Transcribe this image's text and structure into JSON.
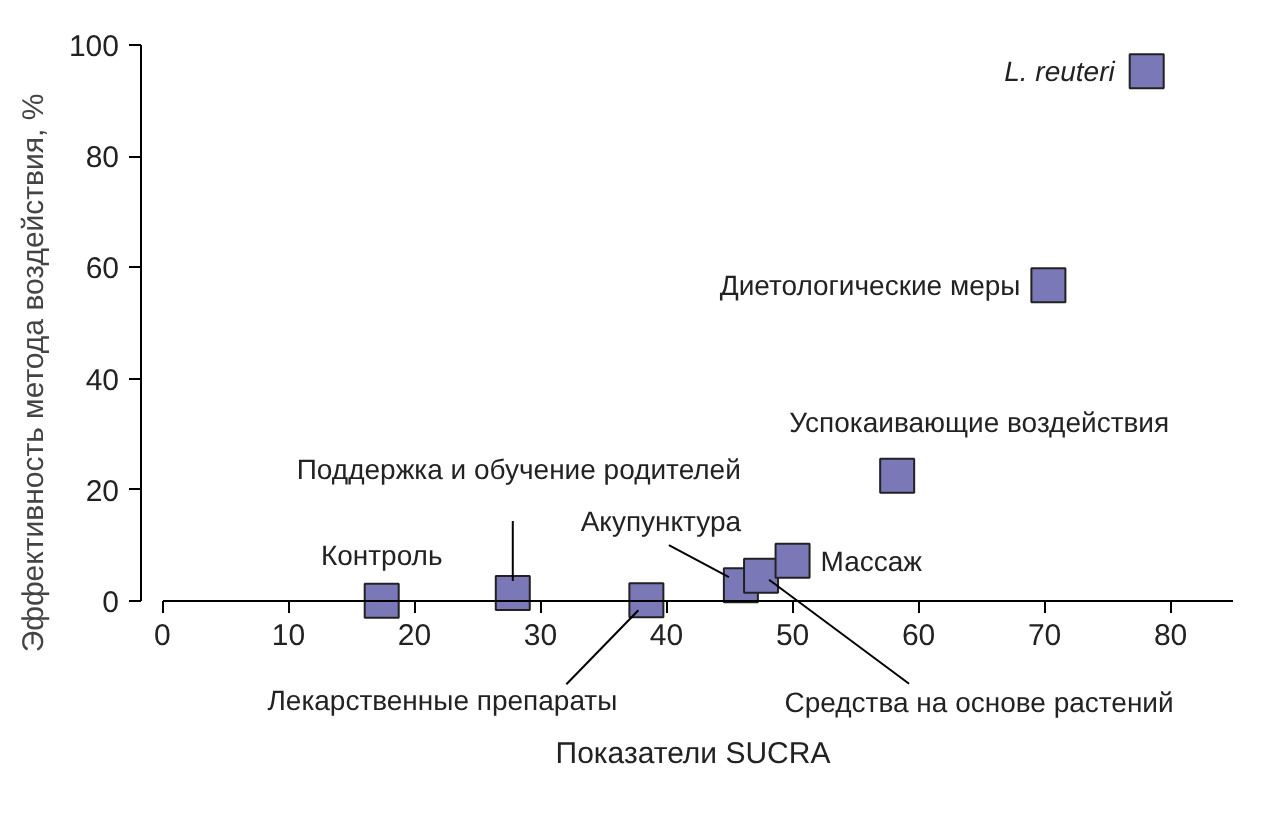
{
  "chart_data": {
    "type": "scatter",
    "xlabel": "Показатели SUCRA",
    "ylabel": "Эффективность метода воздействия, %",
    "x": [
      17.4,
      27.8,
      38.4,
      45.9,
      47.5,
      50.0,
      58.3,
      70.3,
      78.1
    ],
    "series": [
      {
        "color": "#7b78b8",
        "values": [
          0,
          1.4,
          0.1,
          2.8,
          4.5,
          7.2,
          22.5,
          56.8,
          95.3
        ]
      }
    ],
    "marker": "square",
    "xlim": [
      0,
      85
    ],
    "xticks": [
      0,
      10,
      20,
      30,
      40,
      50,
      60,
      70,
      80
    ],
    "ylim": [
      0,
      100
    ],
    "yticks": [
      0,
      20,
      40,
      60,
      80,
      100
    ],
    "annotations": [
      {
        "text": "Контроль",
        "x": 17.4,
        "y": 0
      },
      {
        "text": "Поддержка и обучение родителей",
        "x": 27.8,
        "y": 1.4
      },
      {
        "text": "Лекарственные препараты",
        "x": 38.4,
        "y": 0.1
      },
      {
        "text": "Акупунктура",
        "x": 45.9,
        "y": 2.8
      },
      {
        "text": "Средства на основе растений",
        "x": 47.5,
        "y": 4.5
      },
      {
        "text": "Массаж",
        "x": 50.0,
        "y": 7.2
      },
      {
        "text": "Успокаивающие воздействия",
        "x": 58.3,
        "y": 22.5
      },
      {
        "text": "Диетологические меры",
        "x": 70.3,
        "y": 56.8
      },
      {
        "text": "L. reuteri",
        "x": 78.1,
        "y": 95.3
      }
    ]
  }
}
